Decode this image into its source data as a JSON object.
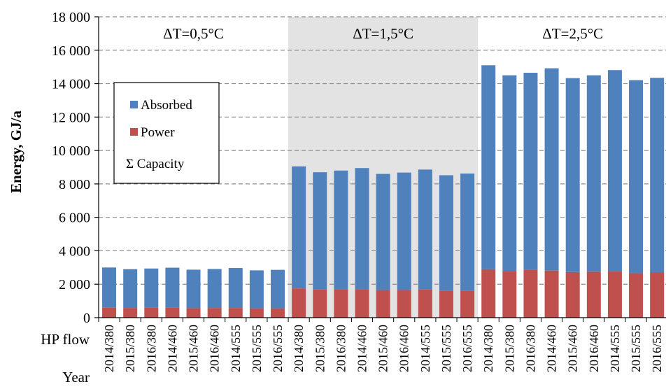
{
  "chart_data": {
    "type": "bar",
    "stacked": true,
    "ylabel": "Energy, GJ/a",
    "ylim": [
      0,
      18000
    ],
    "yticks": [
      "0",
      "2 000",
      "4 000",
      "6 000",
      "8 000",
      "10 000",
      "12 000",
      "14 000",
      "16 000",
      "18 000"
    ],
    "grid": "horizontal dashed",
    "x_row_labels": [
      "HP flow",
      "Year"
    ],
    "categories": [
      "2014/380",
      "2015/380",
      "2016/380",
      "2014/460",
      "2015/460",
      "2016/460",
      "2014/555",
      "2015/555",
      "2016/555",
      "2014/380",
      "2015/380",
      "2016/380",
      "2014/460",
      "2015/460",
      "2016/460",
      "2014/555",
      "2015/555",
      "2016/555",
      "2014/380",
      "2015/380",
      "2016/380",
      "2014/460",
      "2015/460",
      "2016/460",
      "2014/555",
      "2015/555",
      "2016/555"
    ],
    "regions": [
      {
        "label": "ΔT=0,5°C",
        "start": 0,
        "end": 8,
        "shaded": false
      },
      {
        "label": "ΔT=1,5°C",
        "start": 9,
        "end": 17,
        "shaded": true
      },
      {
        "label": "ΔT=2,5°C",
        "start": 18,
        "end": 26,
        "shaded": false
      }
    ],
    "series": [
      {
        "name": "Power",
        "color": "#c0504d",
        "values": [
          600,
          580,
          590,
          590,
          570,
          580,
          580,
          560,
          560,
          1750,
          1680,
          1700,
          1700,
          1650,
          1660,
          1680,
          1620,
          1620,
          2900,
          2800,
          2850,
          2820,
          2730,
          2750,
          2760,
          2660,
          2700
        ]
      },
      {
        "name": "Absorbed",
        "color": "#4f81bd",
        "values": [
          2400,
          2320,
          2350,
          2400,
          2300,
          2330,
          2390,
          2270,
          2300,
          7300,
          7020,
          7100,
          7250,
          6950,
          7020,
          7180,
          6900,
          7000,
          12200,
          11700,
          11800,
          12100,
          11600,
          11750,
          12050,
          11550,
          11650
        ]
      }
    ],
    "legend": {
      "placement": "left",
      "entries": [
        "Absorbed",
        "Power",
        "Σ Capacity"
      ]
    }
  }
}
